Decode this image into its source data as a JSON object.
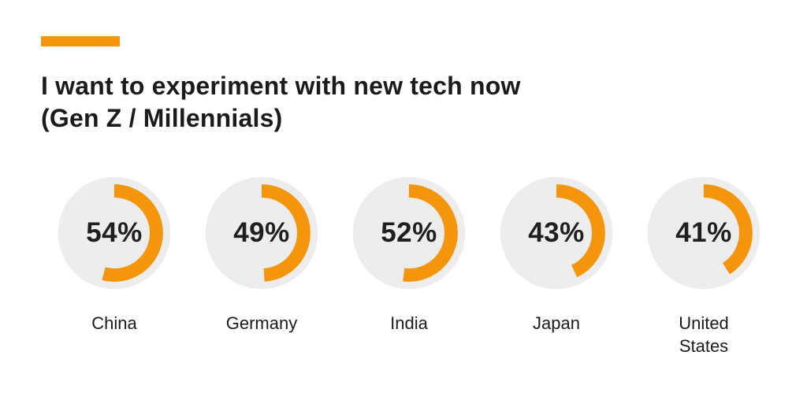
{
  "colors": {
    "accent": "#F5950B",
    "disc": "#EDEDED",
    "value_text": "#1F1F1F",
    "title_text": "#1B1B1B"
  },
  "header": {
    "title_line1": "I want to experiment with new tech now",
    "title_line2": "(Gen Z / Millennials)"
  },
  "chart_data": {
    "type": "pie",
    "variant": "donut-multiples",
    "title": "I want to experiment with new tech now (Gen Z / Millennials)",
    "unit": "%",
    "categories": [
      "China",
      "Germany",
      "India",
      "Japan",
      "United States"
    ],
    "values": [
      54,
      49,
      52,
      43,
      41
    ],
    "value_labels": [
      "54%",
      "49%",
      "52%",
      "43%",
      "41%"
    ],
    "start_angle_deg": 0,
    "direction": "clockwise",
    "ring_color": "#F5950B",
    "disc_color": "#EDEDED",
    "legend_position": "none",
    "grid": false
  }
}
